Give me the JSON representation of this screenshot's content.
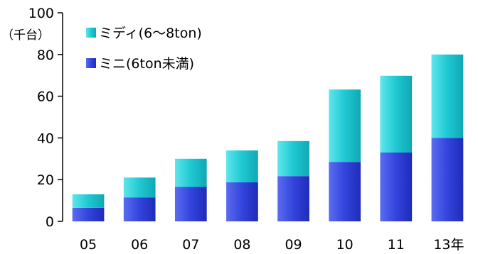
{
  "chart_data": {
    "type": "bar",
    "stacked": true,
    "categories": [
      "05",
      "06",
      "07",
      "08",
      "09",
      "10",
      "11",
      "13年"
    ],
    "series": [
      {
        "name": "ミニ(6ton未満)",
        "values": [
          6.5,
          11.5,
          16.5,
          18.7,
          21.7,
          28.5,
          33,
          40
        ],
        "color": "#3344dd"
      },
      {
        "name": "ミディ(6～8ton)",
        "values": [
          6.5,
          9.5,
          13.5,
          15.3,
          16.8,
          34.7,
          36.8,
          40
        ],
        "color": "#1ec8d2"
      }
    ],
    "ylabel": "（千台）",
    "ylim": [
      0,
      100
    ],
    "yticks": [
      0,
      20,
      40,
      60,
      80,
      100
    ],
    "grid": false,
    "legend": "top-left"
  }
}
